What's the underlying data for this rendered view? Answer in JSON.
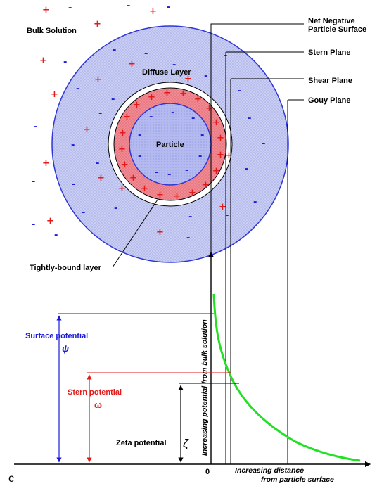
{
  "labels": {
    "bulk_solution": "Bulk Solution",
    "diffuse_layer": "Diffuse Layer",
    "particle": "Particle",
    "tightly_bound_layer": "Tightly-bound layer",
    "net_negative_line1": "Net Negative",
    "net_negative_line2": "Particle Surface",
    "stern_plane": "Stern Plane",
    "shear_plane": "Shear Plane",
    "gouy_plane": "Gouy Plane",
    "surface_potential": "Surface potential",
    "surface_symbol": "ψ",
    "stern_potential": "Stern potential",
    "stern_symbol": "ω",
    "zeta_potential": "Zeta potential",
    "zeta_symbol": "ζ",
    "y_axis_label": "Increasing potential from bulk solution",
    "x_axis_line1": "Increasing distance",
    "x_axis_line2": "from particle surface",
    "origin": "0",
    "panel_letter": "c"
  },
  "colors": {
    "outer_disc": "#c9cef2",
    "outer_ring_edge": "#2f35d6",
    "red_ring": "#f08a93",
    "particle_fill": "#b4baf0",
    "plus": "#e21a1a",
    "minus": "#1a1adc",
    "curve": "#22e022",
    "surface_color": "#1a1adc",
    "stern_color": "#e21a1a"
  }
}
